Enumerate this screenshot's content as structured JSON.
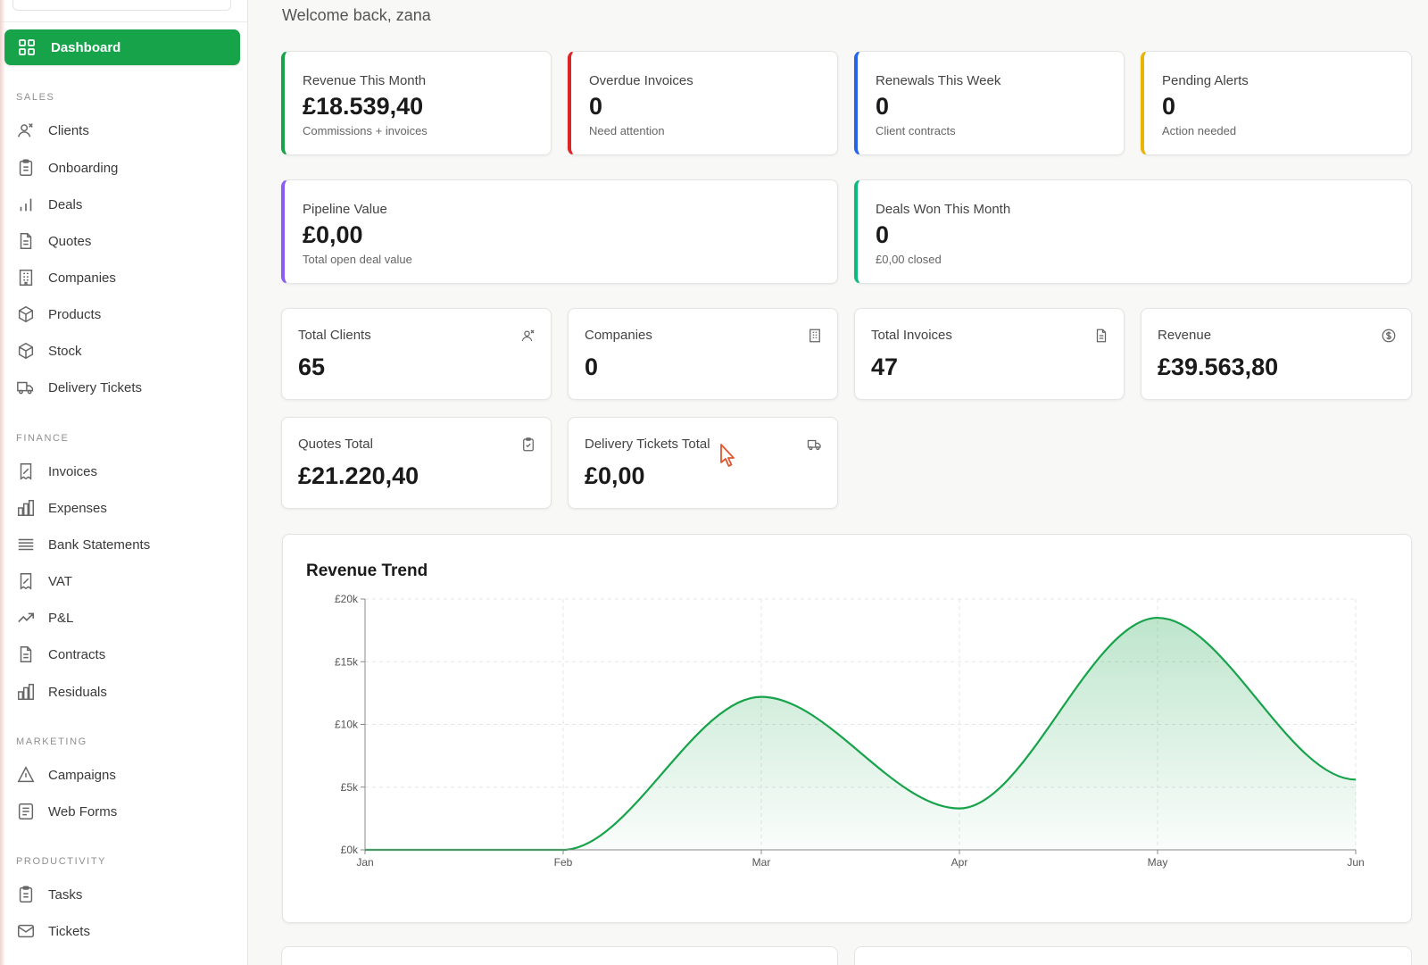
{
  "colors": {
    "brand_green": "#16a34a",
    "accent_red": "#dc2626",
    "accent_blue": "#2563eb",
    "accent_amber": "#eab308",
    "accent_purple": "#8b5cf6",
    "accent_teal": "#10b981"
  },
  "sidebar": {
    "active_item": {
      "label": "Dashboard",
      "icon": "grid-icon"
    },
    "sections": [
      {
        "label": "SALES",
        "items": [
          {
            "label": "Clients",
            "icon": "users-icon"
          },
          {
            "label": "Onboarding",
            "icon": "clipboard-icon"
          },
          {
            "label": "Deals",
            "icon": "bar-chart-icon"
          },
          {
            "label": "Quotes",
            "icon": "file-text-icon"
          },
          {
            "label": "Companies",
            "icon": "building-icon"
          },
          {
            "label": "Products",
            "icon": "box-icon"
          },
          {
            "label": "Stock",
            "icon": "package-icon"
          },
          {
            "label": "Delivery Tickets",
            "icon": "truck-icon"
          }
        ]
      },
      {
        "label": "FINANCE",
        "items": [
          {
            "label": "Invoices",
            "icon": "receipt-icon"
          },
          {
            "label": "Expenses",
            "icon": "bar-chart-2-icon"
          },
          {
            "label": "Bank Statements",
            "icon": "list-icon"
          },
          {
            "label": "VAT",
            "icon": "percent-receipt-icon"
          },
          {
            "label": "P&L",
            "icon": "trending-up-icon"
          },
          {
            "label": "Contracts",
            "icon": "file-icon"
          },
          {
            "label": "Residuals",
            "icon": "bar-chart-3-icon"
          }
        ]
      },
      {
        "label": "MARKETING",
        "items": [
          {
            "label": "Campaigns",
            "icon": "triangle-icon"
          },
          {
            "label": "Web Forms",
            "icon": "form-icon"
          }
        ]
      },
      {
        "label": "PRODUCTIVITY",
        "items": [
          {
            "label": "Tasks",
            "icon": "clipboard-check-icon"
          },
          {
            "label": "Tickets",
            "icon": "mail-icon"
          }
        ]
      }
    ]
  },
  "header": {
    "welcome": "Welcome back, zana"
  },
  "kpis": [
    {
      "title": "Revenue This Month",
      "value": "£18.539,40",
      "sub": "Commissions + invoices",
      "accent": "#16a34a"
    },
    {
      "title": "Overdue Invoices",
      "value": "0",
      "sub": "Need attention",
      "accent": "#dc2626"
    },
    {
      "title": "Renewals This Week",
      "value": "0",
      "sub": "Client contracts",
      "accent": "#2563eb"
    },
    {
      "title": "Pending Alerts",
      "value": "0",
      "sub": "Action needed",
      "accent": "#eab308"
    },
    {
      "title": "Pipeline Value",
      "value": "£0,00",
      "sub": "Total open deal value",
      "accent": "#8b5cf6"
    },
    {
      "title": "Deals Won This Month",
      "value": "0",
      "sub": "£0,00 closed",
      "accent": "#10b981"
    }
  ],
  "stats": [
    {
      "title": "Total Clients",
      "value": "65",
      "icon": "users-icon"
    },
    {
      "title": "Companies",
      "value": "0",
      "icon": "building-icon"
    },
    {
      "title": "Total Invoices",
      "value": "47",
      "icon": "file-text-icon"
    },
    {
      "title": "Revenue",
      "value": "£39.563,80",
      "icon": "dollar-circle-icon"
    },
    {
      "title": "Quotes Total",
      "value": "£21.220,40",
      "icon": "clipboard-icon"
    },
    {
      "title": "Delivery Tickets Total",
      "value": "£0,00",
      "icon": "truck-icon"
    }
  ],
  "chart_data": {
    "type": "area",
    "title": "Revenue Trend",
    "categories": [
      "Jan",
      "Feb",
      "Mar",
      "Apr",
      "May",
      "Jun"
    ],
    "series": [
      {
        "values": [
          0,
          0,
          12200,
          3300,
          18500,
          5600
        ],
        "color": "#16a34a"
      }
    ],
    "ylim": [
      0,
      20000
    ],
    "yticks": [
      "£0k",
      "£5k",
      "£10k",
      "£15k",
      "£20k"
    ],
    "grid": true,
    "legend": "none"
  }
}
